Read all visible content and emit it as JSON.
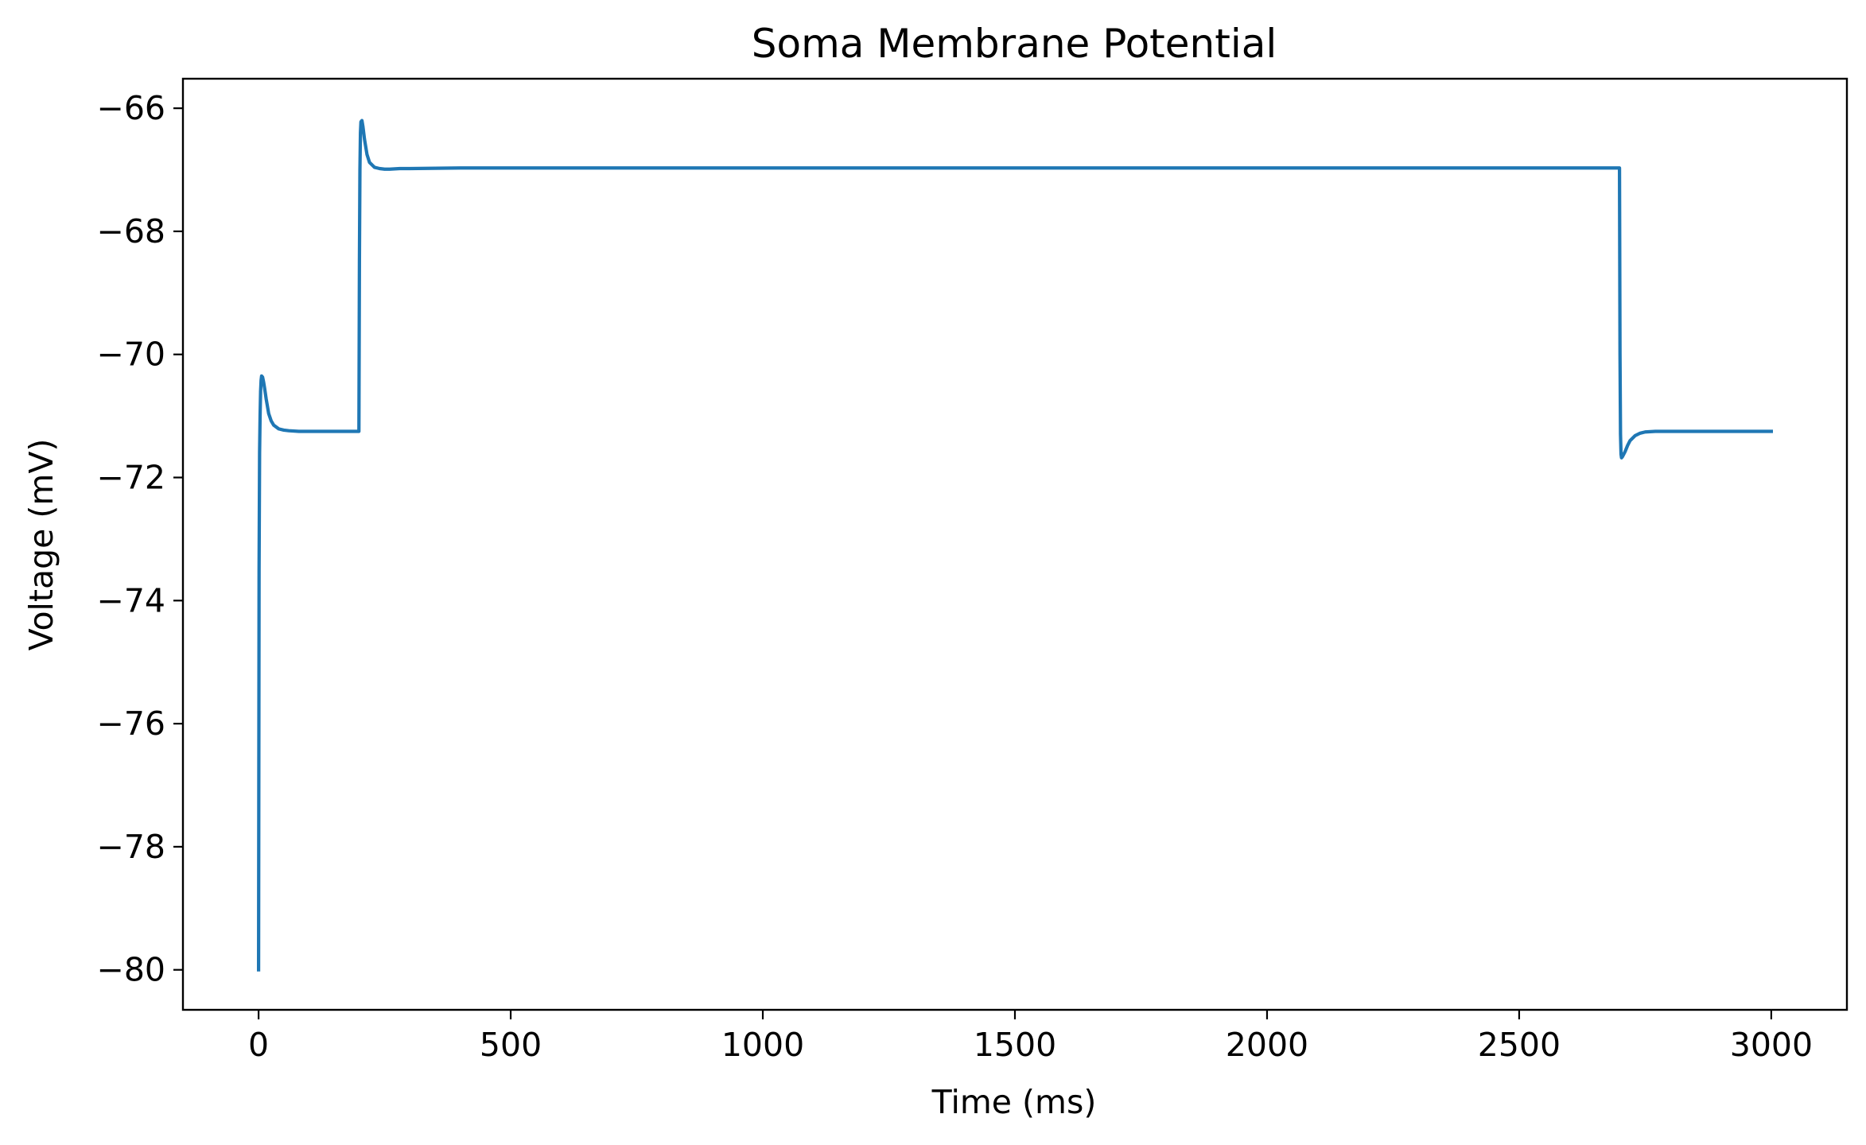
{
  "chart_data": {
    "type": "line",
    "title": "Soma Membrane Potential",
    "xlabel": "Time (ms)",
    "ylabel": "Voltage (mV)",
    "xlim": [
      -150,
      3150
    ],
    "ylim": [
      -80.65,
      -65.52
    ],
    "xticks": [
      0,
      500,
      1000,
      1500,
      2000,
      2500,
      3000
    ],
    "xtick_labels": [
      "0",
      "500",
      "1000",
      "1500",
      "2000",
      "2500",
      "3000"
    ],
    "yticks": [
      -80,
      -78,
      -76,
      -74,
      -72,
      -70,
      -68,
      -66
    ],
    "ytick_labels": [
      "−80",
      "−78",
      "−76",
      "−74",
      "−72",
      "−70",
      "−68",
      "−66"
    ],
    "grid": false,
    "legend": "none",
    "series": [
      {
        "color": "#1f77b4",
        "x": [
          0,
          1,
          2,
          3,
          4,
          5,
          6,
          8,
          10,
          12,
          15,
          20,
          25,
          30,
          40,
          50,
          60,
          80,
          100,
          150,
          199,
          200,
          201,
          202,
          203,
          205,
          207,
          210,
          215,
          220,
          230,
          240,
          250,
          260,
          280,
          300,
          400,
          1000,
          2000,
          2699,
          2700,
          2701,
          2702,
          2703,
          2705,
          2710,
          2715,
          2720,
          2730,
          2740,
          2750,
          2770,
          2800,
          2850,
          2900,
          3000
        ],
        "y": [
          -80.0,
          -73.5,
          -71.6,
          -71.0,
          -70.6,
          -70.42,
          -70.35,
          -70.37,
          -70.45,
          -70.55,
          -70.72,
          -70.96,
          -71.08,
          -71.15,
          -71.21,
          -71.23,
          -71.24,
          -71.25,
          -71.25,
          -71.25,
          -71.25,
          -68.5,
          -67.0,
          -66.4,
          -66.22,
          -66.2,
          -66.3,
          -66.5,
          -66.75,
          -66.88,
          -66.96,
          -66.98,
          -66.99,
          -66.99,
          -66.98,
          -66.98,
          -66.97,
          -66.97,
          -66.97,
          -66.97,
          -70.0,
          -71.3,
          -71.62,
          -71.68,
          -71.66,
          -71.58,
          -71.48,
          -71.4,
          -71.32,
          -71.28,
          -71.26,
          -71.25,
          -71.25,
          -71.25,
          -71.25,
          -71.25
        ]
      }
    ]
  }
}
